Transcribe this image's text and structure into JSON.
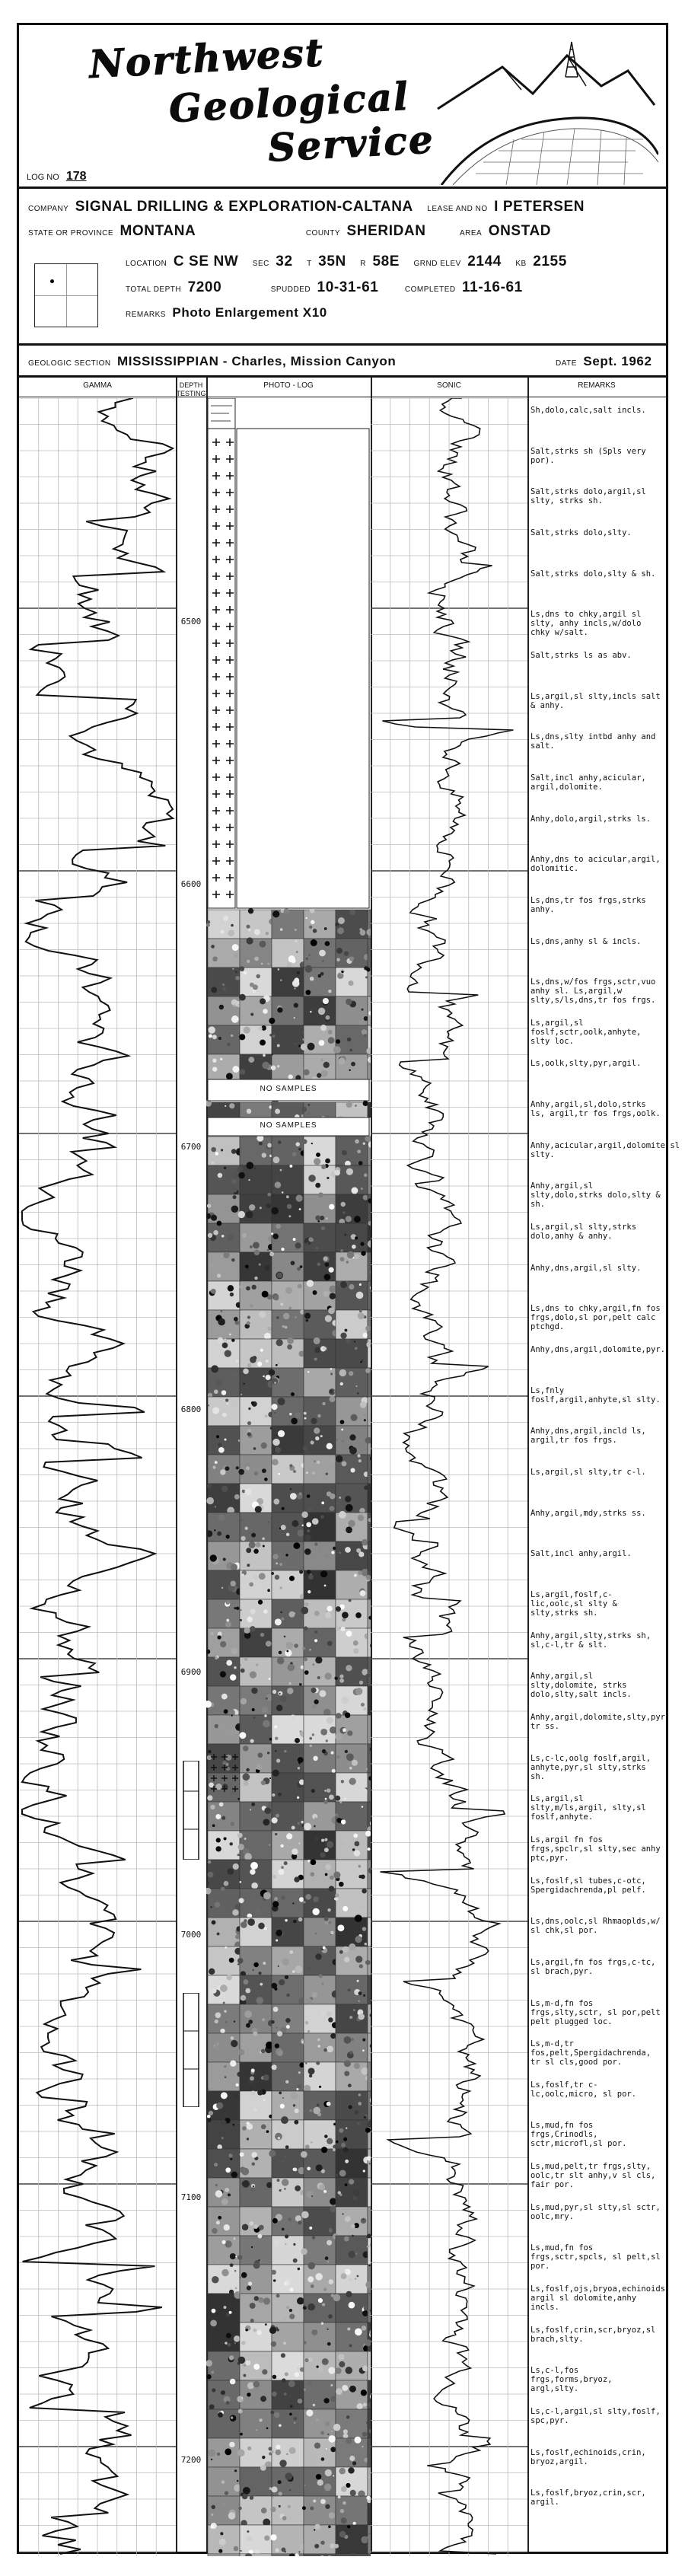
{
  "company_brand": {
    "line1": "Northwest",
    "line2": "Geological",
    "line3": "Service"
  },
  "log_no": {
    "label": "LOG NO",
    "value": "178"
  },
  "company": {
    "label": "COMPANY",
    "value": "SIGNAL DRILLING & EXPLORATION-CALTANA"
  },
  "lease": {
    "label": "LEASE AND NO",
    "value": "I PETERSEN"
  },
  "state": {
    "label": "STATE OR PROVINCE",
    "value": "MONTANA"
  },
  "county": {
    "label": "COUNTY",
    "value": "SHERIDAN"
  },
  "area": {
    "label": "AREA",
    "value": "ONSTAD"
  },
  "location": {
    "label": "LOCATION",
    "value": "C SE NW"
  },
  "sec": {
    "label": "SEC",
    "value": "32"
  },
  "twp": {
    "label": "T",
    "value": "35N"
  },
  "rng": {
    "label": "R",
    "value": "58E"
  },
  "grnd_elev": {
    "label": "GRND ELEV",
    "value": "2144"
  },
  "kb": {
    "label": "KB",
    "value": "2155"
  },
  "total_depth": {
    "label": "TOTAL DEPTH",
    "value": "7200"
  },
  "spudded": {
    "label": "SPUDDED",
    "value": "10-31-61"
  },
  "completed": {
    "label": "COMPLETED",
    "value": "11-16-61"
  },
  "remarks_hdr": {
    "label": "REMARKS",
    "value": "Photo Enlargement X10"
  },
  "geologic_section": {
    "label": "GEOLOGIC SECTION",
    "value": "MISSISSIPPIAN - Charles, Mission Canyon"
  },
  "date": {
    "label": "DATE",
    "value": "Sept. 1962"
  },
  "columns": {
    "gamma": "GAMMA",
    "depth": "DEPTH",
    "testing": "TESTING",
    "photo": "PHOTO - LOG",
    "sonic": "SONIC",
    "remarks": "REMARKS"
  },
  "depth_ticks": [
    "6500",
    "6600",
    "6700",
    "6800",
    "6900",
    "7000",
    "7100",
    "7200"
  ],
  "no_samples": [
    "NO SAMPLES",
    "NO SAMPLES"
  ],
  "remarks": [
    "Sh,dolo,calc,salt incls.",
    "Salt,strks sh (Spls very por).",
    "Salt,strks dolo,argil,sl slty, strks sh.",
    "Salt,strks dolo,slty.",
    "Salt,strks dolo,slty & sh.",
    "Ls,dns to chky,argil sl slty, anhy incls,w/dolo chky w/salt.",
    "Salt,strks ls as abv.",
    "Ls,argil,sl slty,incls salt & anhy.",
    "Ls,dns,slty intbd anhy and salt.",
    "Salt,incl anhy,acicular, argil,dolomite.",
    "Anhy,dolo,argil,strks ls.",
    "Anhy,dns to acicular,argil, dolomitic.",
    "Ls,dns,tr fos frgs,strks anhy.",
    "Ls,dns,anhy sl & incls.",
    "Ls,dns,w/fos frgs,sctr,vuo anhy sl. Ls,argil,w slty,s/ls,dns,tr fos frgs.",
    "Ls,argil,sl foslf,sctr,oolk,anhyte, slty loc.",
    "Ls,oolk,slty,pyr,argil.",
    "Anhy,argil,sl,dolo,strks ls, argil,tr fos frgs,oolk.",
    "Anhy,acicular,argil,dolomite,sl slty.",
    "Anhy,argil,sl slty,dolo,strks dolo,slty & sh.",
    "Ls,argil,sl slty,strks dolo,anhy & anhy.",
    "Anhy,dns,argil,sl slty.",
    "Ls,dns to chky,argil,fn fos frgs,dolo,sl por,pelt calc ptchgd.",
    "Anhy,dns,argil,dolomite,pyr.",
    "Ls,fnly foslf,argil,anhyte,sl slty.",
    "Anhy,dns,argil,incld ls, argil,tr fos frgs.",
    "Ls,argil,sl slty,tr c-l.",
    "Anhy,argil,mdy,strks ss.",
    "Salt,incl anhy,argil.",
    "Ls,argil,foslf,c-lic,oolc,sl slty & slty,strks sh.",
    "Anhy,argil,slty,strks sh, sl,c-l,tr & slt.",
    "Anhy,argil,sl slty,dolomite, strks dolo,slty,salt incls.",
    "Anhy,argil,dolomite,slty,pyr, tr ss.",
    "Ls,c-lc,oolg foslf,argil, anhyte,pyr,sl slty,strks sh.",
    "Ls,argil,sl slty,m/ls,argil, slty,sl foslf,anhyte.",
    "Ls,argil fn fos frgs,spclr,sl slty,sec anhy ptc,pyr.",
    "Ls,foslf,sl tubes,c-otc, Spergidachrenda,pl pelf.",
    "Ls,dns,oolc,sl Rhmaoplds,w/ sl chk,sl por.",
    "Ls,argil,fn fos frgs,c-tc, sl brach,pyr.",
    "Ls,m-d,fn fos frgs,slty,sctr, sl por,pelt pelt plugged loc.",
    "Ls,m-d,tr fos,pelt,Spergidachrenda, tr sl cls,good por.",
    "Ls,foslf,tr c-lc,oolc,micro, sl por.",
    "Ls,mud,fn fos frgs,Crinodls, sctr,microfl,sl por.",
    "Ls,mud,pelt,tr frgs,slty, oolc,tr slt anhy,v sl cls, fair por.",
    "Ls,mud,pyr,sl slty,sl sctr, oolc,mry.",
    "Ls,mud,fn fos frgs,sctr,spcls, sl pelt,sl por.",
    "Ls,foslf,ojs,bryoa,echinoids, argil sl dolomite,anhy incls.",
    "Ls,foslf,crin,scr,bryoz,sl brach,slty.",
    "Ls,c-l,fos frgs,forms,bryoz, argl,slty.",
    "Ls,c-l,argil,sl slty,foslf, spc,pyr.",
    "Ls,foslf,echinoids,crin, bryoz,argil.",
    "Ls,foslf,bryoz,crin,scr, argil."
  ]
}
